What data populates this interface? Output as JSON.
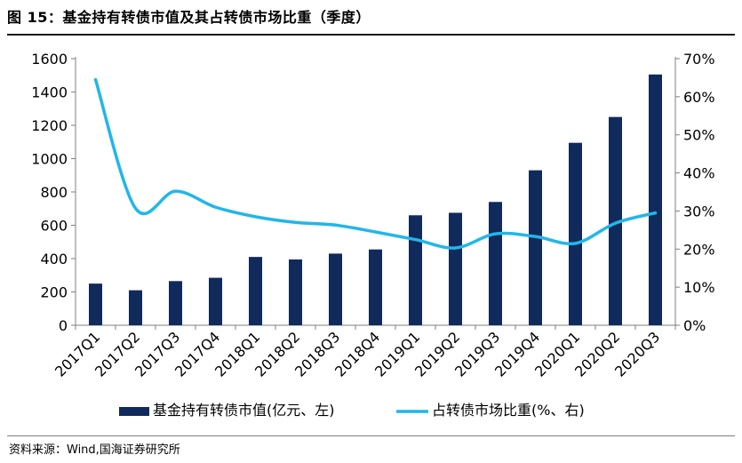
{
  "header": {
    "title": "图 15：基金持有转债市值及其占转债市场比重（季度）"
  },
  "footer": {
    "source": "资料来源：Wind,国海证券研究所"
  },
  "colors": {
    "bar": "#102a5c",
    "line": "#22b6ea",
    "axis": "#7f7f7f"
  },
  "chart_data": {
    "type": "bar",
    "title": "基金持有转债市值及其占转债市场比重（季度）",
    "categories": [
      "2017Q1",
      "2017Q2",
      "2017Q3",
      "2017Q4",
      "2018Q1",
      "2018Q2",
      "2018Q3",
      "2018Q4",
      "2019Q1",
      "2019Q2",
      "2019Q3",
      "2019Q4",
      "2020Q1",
      "2020Q2",
      "2020Q3"
    ],
    "series": [
      {
        "name": "基金持有转债市值(亿元、左)",
        "type": "bar",
        "axis": "left",
        "values": [
          250,
          210,
          265,
          285,
          410,
          395,
          430,
          455,
          660,
          675,
          740,
          930,
          1095,
          1250,
          1505
        ]
      },
      {
        "name": "占转债市场比重(%、右)",
        "type": "line",
        "axis": "right",
        "values": [
          64.5,
          30.7,
          35.2,
          31.0,
          28.5,
          27.0,
          26.3,
          24.5,
          22.5,
          20.3,
          24.0,
          23.3,
          21.5,
          26.8,
          29.5
        ]
      }
    ],
    "y_left": {
      "ylim": [
        0,
        1600
      ],
      "ticks": [
        "0",
        "200",
        "400",
        "600",
        "800",
        "1000",
        "1200",
        "1400",
        "1600"
      ]
    },
    "y_right": {
      "ylim": [
        0,
        70
      ],
      "ticks": [
        "0%",
        "10%",
        "20%",
        "30%",
        "40%",
        "50%",
        "60%",
        "70%"
      ]
    },
    "grid": false,
    "legend_position": "bottom"
  }
}
